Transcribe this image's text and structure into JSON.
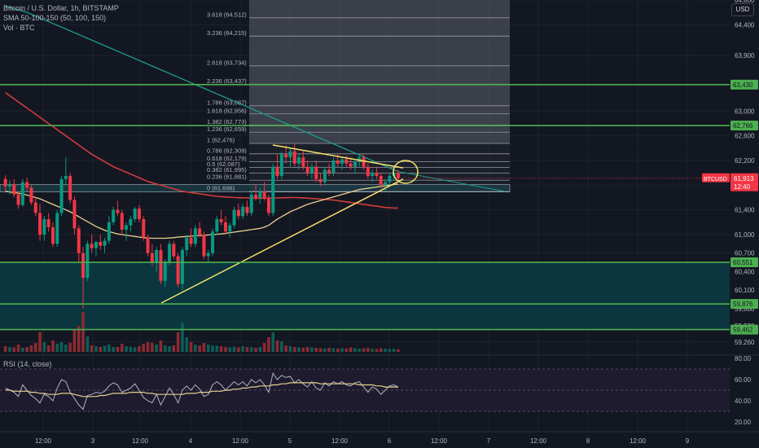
{
  "header": {
    "symbol_line": "Bitcoin / U.S. Dollar, 1h, BITSTAMP",
    "sma_line": "SMA 50-100-150 (50, 100, 150)",
    "vol_line": "Vol · BTC",
    "currency_button": "USD"
  },
  "rsi": {
    "label": "RSI (14, close)"
  },
  "colors": {
    "background": "#131722",
    "up": "#089981",
    "down": "#f23645",
    "sma50": "#e8d08f",
    "sma100": "#d13b3b",
    "sma150": "#1f9c8a",
    "level_line": "#4caf50",
    "rsi_line": "#b2b5be",
    "rsi_ma": "#e8d08f"
  },
  "chart_data": {
    "type": "candlestick",
    "title": "Bitcoin / U.S. Dollar, 1h, BITSTAMP",
    "ylim": [
      59100,
      64800
    ],
    "price_ticks": [
      {
        "v": 64800,
        "t": "64,800"
      },
      {
        "v": 64400,
        "t": "64,400"
      },
      {
        "v": 63900,
        "t": "63,900"
      },
      {
        "v": 63400,
        "t": "63,400"
      },
      {
        "v": 63000,
        "t": "63,000"
      },
      {
        "v": 62600,
        "t": "62,600"
      },
      {
        "v": 62200,
        "t": "62,200"
      },
      {
        "v": 61800,
        "t": "61,800"
      },
      {
        "v": 61400,
        "t": "61,400"
      },
      {
        "v": 61000,
        "t": "61,000"
      },
      {
        "v": 60700,
        "t": "60,700"
      },
      {
        "v": 60400,
        "t": "60,400"
      },
      {
        "v": 60100,
        "t": "60,100"
      },
      {
        "v": 59800,
        "t": "59,800"
      },
      {
        "v": 59520,
        "t": "59,520"
      },
      {
        "v": 59260,
        "t": "59,260"
      }
    ],
    "x_ticks": [
      "12:00",
      "3",
      "12:00",
      "4",
      "12:00",
      "5",
      "12:00",
      "6",
      "12:00",
      "7",
      "12:00",
      "8",
      "12:00",
      "9"
    ],
    "horizontal_levels": [
      {
        "value": 63430,
        "label": "63,430"
      },
      {
        "value": 62766,
        "label": "62,766"
      },
      {
        "value": 60551,
        "label": "60,551"
      },
      {
        "value": 59876,
        "label": "59,876"
      },
      {
        "value": 59462,
        "label": "59,462"
      }
    ],
    "current_price": {
      "symbol": "BTCUSD",
      "price": "61,913",
      "countdown": "12:40",
      "value": 61913
    },
    "fib_levels": [
      {
        "ratio": "3.618",
        "label": "3.618 (64,512)",
        "value": 64512
      },
      {
        "ratio": "3.236",
        "label": "3.236 (64,215)",
        "value": 64215
      },
      {
        "ratio": "2.618",
        "label": "2.618 (63,734)",
        "value": 63734
      },
      {
        "ratio": "2.236",
        "label": "2.236 (63,437)",
        "value": 63437
      },
      {
        "ratio": "1.786",
        "label": "1.786 (63,087)",
        "value": 63087
      },
      {
        "ratio": "1.618",
        "label": "1.618 (62,956)",
        "value": 62956
      },
      {
        "ratio": "1.382",
        "label": "1.382 (62,773)",
        "value": 62773
      },
      {
        "ratio": "1.236",
        "label": "1.236 (62,659)",
        "value": 62659
      },
      {
        "ratio": "1",
        "label": "1 (62,476)",
        "value": 62476
      },
      {
        "ratio": "0.786",
        "label": "0.786 (62,309)",
        "value": 62309
      },
      {
        "ratio": "0.618",
        "label": "0.618 (62,179)",
        "value": 62179
      },
      {
        "ratio": "0.5",
        "label": "0.5 (62,087)",
        "value": 62087
      },
      {
        "ratio": "0.382",
        "label": "0.382 (61,995)",
        "value": 61995
      },
      {
        "ratio": "0.236",
        "label": "0.236 (61,881)",
        "value": 61881
      },
      {
        "ratio": "0",
        "label": "0 (61,698)",
        "value": 61698
      }
    ],
    "rsi_ticks": [
      {
        "v": 80,
        "t": "80.00"
      },
      {
        "v": 60,
        "t": "60.00"
      },
      {
        "v": 40,
        "t": "40.00"
      },
      {
        "v": 20,
        "t": "20.00"
      }
    ],
    "rsi_band": [
      70,
      30
    ],
    "candles": [
      [
        61900,
        61960,
        61700,
        61780
      ],
      [
        61780,
        61880,
        61650,
        61820
      ],
      [
        61820,
        61900,
        61600,
        61650
      ],
      [
        61650,
        61700,
        61420,
        61480
      ],
      [
        61480,
        61900,
        61450,
        61850
      ],
      [
        61850,
        61920,
        61700,
        61760
      ],
      [
        61760,
        61800,
        61480,
        61520
      ],
      [
        61520,
        61600,
        61300,
        61350
      ],
      [
        61350,
        61500,
        60900,
        61000
      ],
      [
        61000,
        61300,
        60900,
        61250
      ],
      [
        61250,
        61350,
        61050,
        61120
      ],
      [
        61120,
        61200,
        60800,
        60850
      ],
      [
        60850,
        61400,
        60800,
        61350
      ],
      [
        61350,
        61950,
        61300,
        61900
      ],
      [
        61900,
        62250,
        61800,
        61950
      ],
      [
        61950,
        62000,
        61500,
        61560
      ],
      [
        61560,
        61620,
        61000,
        61100
      ],
      [
        61100,
        61150,
        60550,
        60700
      ],
      [
        60700,
        60800,
        59800,
        60300
      ],
      [
        60300,
        60900,
        60250,
        60850
      ],
      [
        60850,
        61000,
        60700,
        60780
      ],
      [
        60780,
        60900,
        60650,
        60880
      ],
      [
        60880,
        61000,
        60750,
        60820
      ],
      [
        60820,
        60950,
        60700,
        60900
      ],
      [
        60900,
        61300,
        60850,
        61200
      ],
      [
        61200,
        61450,
        61150,
        61400
      ],
      [
        61400,
        61550,
        61300,
        61350
      ],
      [
        61350,
        61400,
        61000,
        61080
      ],
      [
        61080,
        61200,
        60900,
        61150
      ],
      [
        61150,
        61300,
        61050,
        61250
      ],
      [
        61250,
        61450,
        61200,
        61420
      ],
      [
        61420,
        61480,
        61200,
        61250
      ],
      [
        61250,
        61300,
        60900,
        60950
      ],
      [
        60950,
        61000,
        60650,
        60700
      ],
      [
        60700,
        60850,
        60500,
        60550
      ],
      [
        60550,
        60800,
        60400,
        60750
      ],
      [
        60750,
        60850,
        60200,
        60250
      ],
      [
        60250,
        60600,
        60150,
        60550
      ],
      [
        60550,
        60900,
        60500,
        60850
      ],
      [
        60850,
        60900,
        60600,
        60650
      ],
      [
        60650,
        60700,
        60150,
        60200
      ],
      [
        60200,
        60800,
        60100,
        60750
      ],
      [
        60750,
        61000,
        60650,
        60950
      ],
      [
        60950,
        61100,
        60800,
        60850
      ],
      [
        60850,
        61150,
        60800,
        61100
      ],
      [
        61100,
        61200,
        60950,
        61000
      ],
      [
        61000,
        61050,
        60600,
        60650
      ],
      [
        60650,
        60750,
        60550,
        60700
      ],
      [
        60700,
        61100,
        60650,
        61050
      ],
      [
        61050,
        61300,
        61000,
        61250
      ],
      [
        61250,
        61400,
        61150,
        61200
      ],
      [
        61200,
        61300,
        61000,
        61050
      ],
      [
        61050,
        61200,
        60950,
        61150
      ],
      [
        61150,
        61450,
        61100,
        61400
      ],
      [
        61400,
        61500,
        61250,
        61300
      ],
      [
        61300,
        61500,
        61250,
        61450
      ],
      [
        61450,
        61550,
        61300,
        61350
      ],
      [
        61350,
        61700,
        61300,
        61650
      ],
      [
        61650,
        61800,
        61550,
        61600
      ],
      [
        61600,
        61750,
        61500,
        61700
      ],
      [
        61700,
        61850,
        61550,
        61600
      ],
      [
        61600,
        61650,
        61300,
        61350
      ],
      [
        61350,
        62150,
        61300,
        62100
      ],
      [
        62100,
        62300,
        61900,
        61950
      ],
      [
        61950,
        62350,
        61900,
        62300
      ],
      [
        62300,
        62450,
        62150,
        62250
      ],
      [
        62250,
        62400,
        62100,
        62350
      ],
      [
        62350,
        62480,
        62100,
        62150
      ],
      [
        62150,
        62300,
        62050,
        62250
      ],
      [
        62250,
        62350,
        62050,
        62100
      ],
      [
        62100,
        62200,
        61950,
        62000
      ],
      [
        62000,
        62150,
        61900,
        62100
      ],
      [
        62100,
        62200,
        61850,
        61900
      ],
      [
        61900,
        62000,
        61780,
        61850
      ],
      [
        61850,
        62100,
        61800,
        62050
      ],
      [
        62050,
        62150,
        61950,
        62000
      ],
      [
        62000,
        62250,
        61950,
        62200
      ],
      [
        62200,
        62300,
        62100,
        62150
      ],
      [
        62150,
        62250,
        62050,
        62220
      ],
      [
        62220,
        62280,
        62100,
        62150
      ],
      [
        62150,
        62250,
        62050,
        62100
      ],
      [
        62100,
        62200,
        62000,
        62180
      ],
      [
        62180,
        62300,
        62100,
        62250
      ],
      [
        62250,
        62300,
        62050,
        62100
      ],
      [
        62100,
        62150,
        61900,
        61950
      ],
      [
        61950,
        62050,
        61850,
        62000
      ],
      [
        62000,
        62100,
        61900,
        61950
      ],
      [
        61950,
        62000,
        61750,
        61800
      ],
      [
        61800,
        61900,
        61700,
        61850
      ],
      [
        61850,
        62000,
        61800,
        61950
      ],
      [
        61950,
        62050,
        61880,
        62000
      ],
      [
        62000,
        62050,
        61870,
        61913
      ]
    ],
    "volumes": [
      35,
      30,
      28,
      45,
      25,
      30,
      40,
      55,
      120,
      60,
      40,
      70,
      50,
      60,
      45,
      55,
      140,
      160,
      245,
      95,
      40,
      35,
      30,
      38,
      45,
      30,
      30,
      50,
      35,
      32,
      28,
      35,
      50,
      60,
      55,
      45,
      70,
      40,
      35,
      40,
      120,
      180,
      90,
      60,
      45,
      40,
      55,
      45,
      40,
      38,
      35,
      30,
      28,
      32,
      28,
      35,
      30,
      28,
      25,
      30,
      55,
      90,
      120,
      70,
      65,
      40,
      35,
      30,
      28,
      25,
      30,
      28,
      25,
      22,
      20,
      25,
      22,
      20,
      22,
      20,
      28,
      22,
      20,
      22,
      25,
      20,
      18,
      22,
      20,
      18,
      18,
      15
    ],
    "sma50": [
      61700,
      61690,
      61680,
      61670,
      61660,
      61640,
      61620,
      61600,
      61580,
      61550,
      61520,
      61490,
      61460,
      61430,
      61400,
      61370,
      61330,
      61290,
      61250,
      61210,
      61170,
      61130,
      61100,
      61070,
      61050,
      61030,
      61010,
      61000,
      60990,
      60980,
      60970,
      60960,
      60950,
      60945,
      60940,
      60940,
      60940,
      60940,
      60945,
      60950,
      60960,
      60965,
      60970,
      60975,
      60980,
      60985,
      60990,
      60995,
      61000,
      61005,
      61010,
      61020,
      61030,
      61040,
      61050,
      61060,
      61070,
      61080,
      61090,
      61100,
      61120,
      61150,
      61200,
      61250,
      61290,
      61330,
      61370,
      61400,
      61430,
      61460,
      61490,
      61510,
      61530,
      61550,
      61570,
      61590,
      61610,
      61630,
      61650,
      61670,
      61690,
      61710,
      61730,
      61740,
      61750,
      61760,
      61770,
      61780,
      61790,
      61800,
      61810,
      61820
    ],
    "sma100": [
      63300,
      63250,
      63200,
      63150,
      63100,
      63050,
      63000,
      62950,
      62900,
      62850,
      62800,
      62750,
      62700,
      62650,
      62600,
      62550,
      62500,
      62450,
      62400,
      62350,
      62300,
      62260,
      62220,
      62180,
      62140,
      62100,
      62070,
      62040,
      62010,
      61980,
      61950,
      61920,
      61890,
      61860,
      61840,
      61820,
      61800,
      61780,
      61760,
      61740,
      61720,
      61700,
      61690,
      61680,
      61670,
      61660,
      61650,
      61640,
      61630,
      61620,
      61615,
      61610,
      61605,
      61600,
      61598,
      61596,
      61594,
      61592,
      61590,
      61590,
      61590,
      61590,
      61592,
      61594,
      61596,
      61598,
      61600,
      61600,
      61598,
      61595,
      61590,
      61585,
      61580,
      61575,
      61570,
      61565,
      61560,
      61550,
      61540,
      61530,
      61520,
      61510,
      61500,
      61490,
      61480,
      61470,
      61460,
      61450,
      61440,
      61435,
      61430,
      61430
    ],
    "sma150": [
      64700,
      64680,
      64660,
      64640,
      64620,
      64600,
      64570,
      64540,
      64510,
      64480,
      64450,
      64420,
      64390,
      64360,
      64330,
      64300,
      64270,
      64240,
      64210,
      64180,
      64150,
      64120,
      64090,
      64060,
      64030,
      64000,
      63970,
      63940,
      63910,
      63880,
      63850,
      63820,
      63790,
      63760,
      63730,
      63700,
      63670,
      63640,
      63610,
      63580,
      63550,
      63520,
      63490,
      63460,
      63430,
      63400,
      63370,
      63340,
      63310,
      63280,
      63250,
      63220,
      63190,
      63160,
      63130,
      63100,
      63070,
      63040,
      63010,
      62980,
      62950,
      62920,
      62890,
      62860,
      62830,
      62800,
      62770,
      62740,
      62710,
      62680,
      62650,
      62620,
      62590,
      62560,
      62530,
      62500,
      62470,
      62440,
      62410,
      62380,
      62350,
      62320,
      62290,
      62260,
      62230,
      62200,
      62170,
      62140,
      62110,
      62080,
      62050,
      62020
    ],
    "rsi": [
      52,
      50,
      48,
      44,
      55,
      50,
      45,
      42,
      38,
      46,
      44,
      40,
      52,
      60,
      58,
      48,
      42,
      36,
      32,
      45,
      46,
      48,
      47,
      49,
      54,
      57,
      55,
      48,
      50,
      52,
      56,
      50,
      43,
      40,
      38,
      46,
      36,
      44,
      52,
      46,
      38,
      50,
      54,
      50,
      55,
      51,
      44,
      46,
      55,
      58,
      55,
      50,
      54,
      58,
      55,
      58,
      54,
      60,
      57,
      60,
      55,
      48,
      66,
      60,
      64,
      62,
      63,
      57,
      60,
      56,
      53,
      58,
      52,
      50,
      57,
      54,
      58,
      56,
      58,
      55,
      54,
      57,
      58,
      53,
      48,
      53,
      51,
      46,
      50,
      54,
      55,
      53
    ],
    "rsi_ma": [
      50,
      50,
      49,
      49,
      49,
      49,
      48,
      48,
      47,
      47,
      46,
      46,
      46,
      47,
      47,
      47,
      46,
      45,
      44,
      44,
      44,
      44,
      45,
      45,
      46,
      47,
      47,
      47,
      47,
      48,
      48,
      48,
      48,
      47,
      47,
      46,
      46,
      46,
      46,
      46,
      46,
      46,
      47,
      47,
      47,
      48,
      48,
      48,
      49,
      49,
      49,
      50,
      50,
      51,
      51,
      52,
      52,
      53,
      53,
      54,
      54,
      54,
      55,
      55,
      56,
      56,
      57,
      57,
      57,
      57,
      57,
      57,
      57,
      56,
      56,
      56,
      56,
      56,
      56,
      56,
      56,
      56,
      55,
      55,
      55,
      55,
      54,
      54,
      53,
      53,
      53,
      53
    ]
  }
}
